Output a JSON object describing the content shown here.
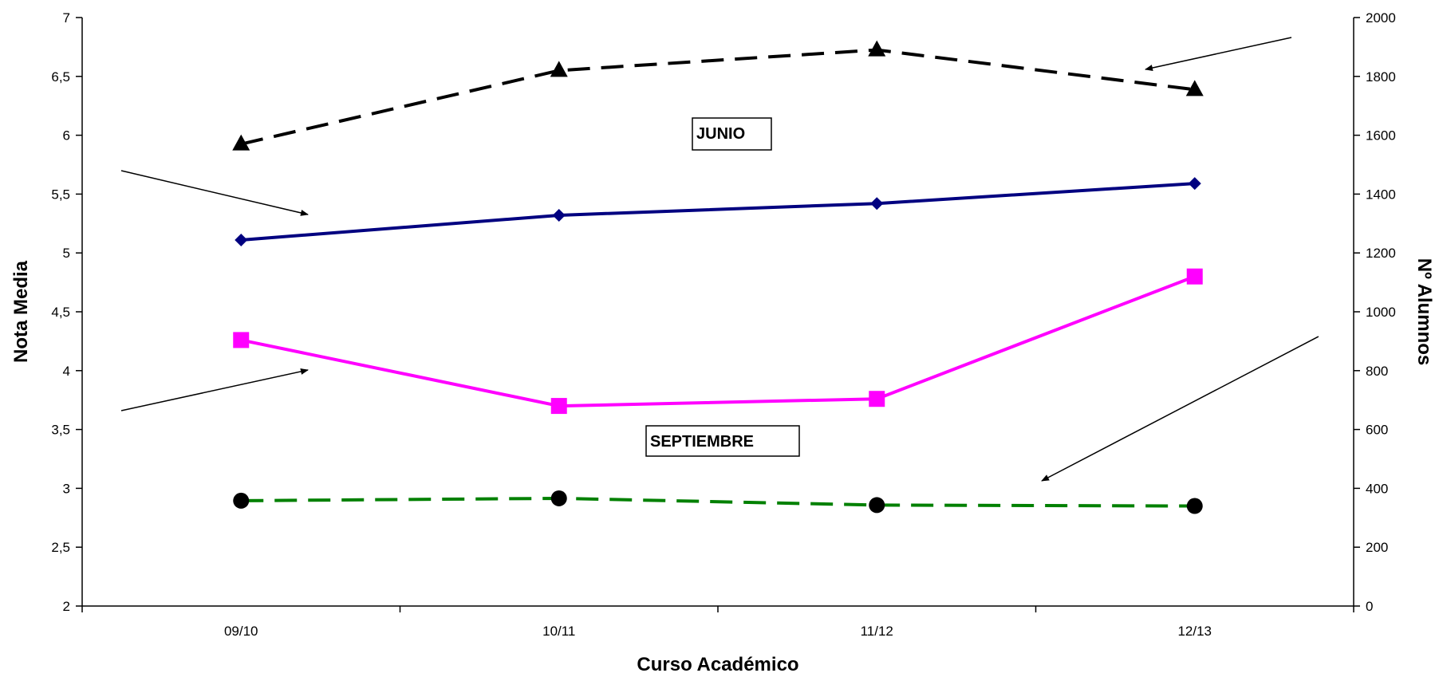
{
  "chart_data": {
    "type": "line",
    "categories": [
      "09/10",
      "10/11",
      "11/12",
      "12/13"
    ],
    "xlabel": "Curso Académico",
    "ylabel_left": "Nota Media",
    "ylabel_right": "Nº Alumnos",
    "ylim_left": [
      2,
      7
    ],
    "ylim_right": [
      0,
      2000
    ],
    "yticks_left": [
      "2",
      "2,5",
      "3",
      "3,5",
      "4",
      "4,5",
      "5",
      "5,5",
      "6",
      "6,5",
      "7"
    ],
    "yticks_right": [
      "0",
      "200",
      "400",
      "600",
      "800",
      "1000",
      "1200",
      "1400",
      "1600",
      "1800",
      "2000"
    ],
    "grid": false,
    "legend": "none",
    "series": [
      {
        "axis": "left",
        "values": [
          5.11,
          5.32,
          5.42,
          5.59
        ],
        "color": "#000080",
        "style": "solid",
        "marker": "diamond"
      },
      {
        "axis": "left",
        "values": [
          4.26,
          3.7,
          3.76,
          4.8
        ],
        "color": "#ff00ff",
        "style": "solid",
        "marker": "square"
      },
      {
        "axis": "right",
        "values": [
          1570,
          1820,
          1890,
          1755
        ],
        "color": "#000000",
        "style": "dashed",
        "marker": "triangle"
      },
      {
        "axis": "right",
        "values": [
          358,
          366,
          343,
          340
        ],
        "color": "#008000",
        "style": "dashed",
        "marker": "circle",
        "marker_color": "#000000"
      }
    ],
    "annotations": [
      {
        "text": "JUNIO"
      },
      {
        "text": "SEPTIEMBRE"
      }
    ]
  }
}
